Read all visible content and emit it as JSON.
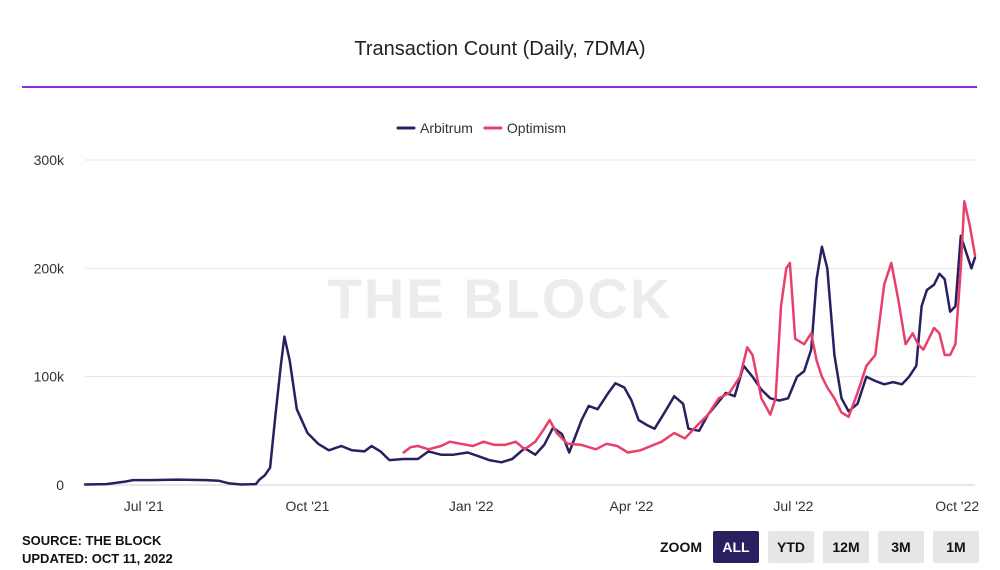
{
  "title": "Transaction Count (Daily, 7DMA)",
  "footer": {
    "source": "SOURCE: THE BLOCK",
    "updated": "UPDATED: OCT 11, 2022"
  },
  "watermark": "THE BLOCK",
  "zoom": {
    "label": "ZOOM",
    "buttons": [
      {
        "label": "ALL",
        "active": true
      },
      {
        "label": "YTD",
        "active": false
      },
      {
        "label": "12M",
        "active": false
      },
      {
        "label": "3M",
        "active": false
      },
      {
        "label": "1M",
        "active": false
      }
    ]
  },
  "colors": {
    "accent_rule": "#8a2be2",
    "arbitrum": "#2a2060",
    "optimism": "#e8406b",
    "zoom_active": "#2a2060"
  },
  "chart_data": {
    "type": "line",
    "x_unit": "date",
    "xlim": [
      "2021-05-29",
      "2022-10-11"
    ],
    "ylim": [
      0,
      300000
    ],
    "y_ticks": [
      0,
      100000,
      200000,
      300000
    ],
    "y_tick_labels": [
      "0",
      "100k",
      "200k",
      "300k"
    ],
    "x_ticks": [
      {
        "date": "2021-07-01",
        "label": "Jul '21"
      },
      {
        "date": "2021-10-01",
        "label": "Oct '21"
      },
      {
        "date": "2022-01-01",
        "label": "Jan '22"
      },
      {
        "date": "2022-04-01",
        "label": "Apr '22"
      },
      {
        "date": "2022-07-01",
        "label": "Jul '22"
      },
      {
        "date": "2022-10-01",
        "label": "Oct '22"
      }
    ],
    "grid": "horizontal",
    "legend_position": "top-center",
    "series": [
      {
        "name": "Arbitrum",
        "color": "#2a2060",
        "points": [
          [
            "2021-05-29",
            500
          ],
          [
            "2021-06-10",
            800
          ],
          [
            "2021-06-20",
            3000
          ],
          [
            "2021-06-25",
            4500
          ],
          [
            "2021-07-05",
            4500
          ],
          [
            "2021-07-20",
            5000
          ],
          [
            "2021-08-05",
            4500
          ],
          [
            "2021-08-12",
            4000
          ],
          [
            "2021-08-18",
            1500
          ],
          [
            "2021-08-25",
            500
          ],
          [
            "2021-09-02",
            800
          ],
          [
            "2021-09-04",
            5000
          ],
          [
            "2021-09-07",
            9000
          ],
          [
            "2021-09-10",
            16000
          ],
          [
            "2021-09-13",
            65000
          ],
          [
            "2021-09-16",
            110000
          ],
          [
            "2021-09-18",
            137000
          ],
          [
            "2021-09-21",
            115000
          ],
          [
            "2021-09-25",
            70000
          ],
          [
            "2021-10-01",
            48000
          ],
          [
            "2021-10-07",
            38000
          ],
          [
            "2021-10-13",
            32000
          ],
          [
            "2021-10-20",
            36000
          ],
          [
            "2021-10-26",
            32000
          ],
          [
            "2021-11-02",
            31000
          ],
          [
            "2021-11-06",
            36000
          ],
          [
            "2021-11-11",
            31000
          ],
          [
            "2021-11-16",
            23000
          ],
          [
            "2021-11-24",
            24000
          ],
          [
            "2021-12-02",
            24000
          ],
          [
            "2021-12-08",
            31000
          ],
          [
            "2021-12-15",
            28000
          ],
          [
            "2021-12-22",
            28000
          ],
          [
            "2021-12-30",
            30000
          ],
          [
            "2022-01-06",
            26000
          ],
          [
            "2022-01-11",
            23000
          ],
          [
            "2022-01-18",
            21000
          ],
          [
            "2022-01-24",
            24000
          ],
          [
            "2022-01-31",
            34000
          ],
          [
            "2022-02-06",
            28000
          ],
          [
            "2022-02-11",
            37000
          ],
          [
            "2022-02-16",
            53000
          ],
          [
            "2022-02-21",
            47000
          ],
          [
            "2022-02-25",
            30000
          ],
          [
            "2022-03-04",
            60000
          ],
          [
            "2022-03-08",
            73000
          ],
          [
            "2022-03-13",
            70000
          ],
          [
            "2022-03-19",
            85000
          ],
          [
            "2022-03-23",
            94000
          ],
          [
            "2022-03-28",
            90000
          ],
          [
            "2022-04-01",
            78000
          ],
          [
            "2022-04-05",
            60000
          ],
          [
            "2022-04-10",
            55000
          ],
          [
            "2022-04-14",
            52000
          ],
          [
            "2022-04-20",
            68000
          ],
          [
            "2022-04-25",
            82000
          ],
          [
            "2022-04-30",
            75000
          ],
          [
            "2022-05-03",
            52000
          ],
          [
            "2022-05-09",
            50000
          ],
          [
            "2022-05-14",
            65000
          ],
          [
            "2022-05-19",
            75000
          ],
          [
            "2022-05-24",
            85000
          ],
          [
            "2022-05-29",
            82000
          ],
          [
            "2022-06-03",
            110000
          ],
          [
            "2022-06-08",
            100000
          ],
          [
            "2022-06-13",
            88000
          ],
          [
            "2022-06-18",
            80000
          ],
          [
            "2022-06-23",
            78000
          ],
          [
            "2022-06-28",
            80000
          ],
          [
            "2022-07-03",
            100000
          ],
          [
            "2022-07-07",
            105000
          ],
          [
            "2022-07-11",
            125000
          ],
          [
            "2022-07-14",
            190000
          ],
          [
            "2022-07-17",
            220000
          ],
          [
            "2022-07-20",
            200000
          ],
          [
            "2022-07-24",
            120000
          ],
          [
            "2022-07-28",
            80000
          ],
          [
            "2022-08-01",
            68000
          ],
          [
            "2022-08-06",
            75000
          ],
          [
            "2022-08-11",
            100000
          ],
          [
            "2022-08-16",
            96000
          ],
          [
            "2022-08-21",
            93000
          ],
          [
            "2022-08-26",
            95000
          ],
          [
            "2022-08-31",
            93000
          ],
          [
            "2022-09-04",
            100000
          ],
          [
            "2022-09-08",
            110000
          ],
          [
            "2022-09-11",
            165000
          ],
          [
            "2022-09-14",
            180000
          ],
          [
            "2022-09-18",
            185000
          ],
          [
            "2022-09-21",
            195000
          ],
          [
            "2022-09-24",
            190000
          ],
          [
            "2022-09-27",
            160000
          ],
          [
            "2022-09-30",
            165000
          ],
          [
            "2022-10-03",
            230000
          ],
          [
            "2022-10-06",
            215000
          ],
          [
            "2022-10-09",
            200000
          ],
          [
            "2022-10-11",
            210000
          ]
        ]
      },
      {
        "name": "Optimism",
        "color": "#e8406b",
        "points": [
          [
            "2021-11-24",
            30000
          ],
          [
            "2021-11-28",
            35000
          ],
          [
            "2021-12-02",
            36000
          ],
          [
            "2021-12-08",
            33000
          ],
          [
            "2021-12-15",
            36000
          ],
          [
            "2021-12-20",
            40000
          ],
          [
            "2021-12-26",
            38000
          ],
          [
            "2022-01-02",
            36000
          ],
          [
            "2022-01-08",
            40000
          ],
          [
            "2022-01-14",
            37000
          ],
          [
            "2022-01-20",
            37000
          ],
          [
            "2022-01-26",
            40000
          ],
          [
            "2022-01-31",
            33000
          ],
          [
            "2022-02-06",
            40000
          ],
          [
            "2022-02-11",
            52000
          ],
          [
            "2022-02-14",
            60000
          ],
          [
            "2022-02-18",
            48000
          ],
          [
            "2022-02-24",
            38000
          ],
          [
            "2022-03-04",
            37000
          ],
          [
            "2022-03-12",
            33000
          ],
          [
            "2022-03-18",
            38000
          ],
          [
            "2022-03-24",
            36000
          ],
          [
            "2022-03-30",
            30000
          ],
          [
            "2022-04-06",
            32000
          ],
          [
            "2022-04-12",
            36000
          ],
          [
            "2022-04-18",
            40000
          ],
          [
            "2022-04-25",
            48000
          ],
          [
            "2022-05-01",
            43000
          ],
          [
            "2022-05-08",
            55000
          ],
          [
            "2022-05-14",
            65000
          ],
          [
            "2022-05-20",
            80000
          ],
          [
            "2022-05-26",
            85000
          ],
          [
            "2022-06-01",
            100000
          ],
          [
            "2022-06-05",
            127000
          ],
          [
            "2022-06-08",
            120000
          ],
          [
            "2022-06-13",
            80000
          ],
          [
            "2022-06-18",
            65000
          ],
          [
            "2022-06-21",
            80000
          ],
          [
            "2022-06-24",
            165000
          ],
          [
            "2022-06-27",
            200000
          ],
          [
            "2022-06-29",
            205000
          ],
          [
            "2022-07-02",
            135000
          ],
          [
            "2022-07-07",
            130000
          ],
          [
            "2022-07-11",
            140000
          ],
          [
            "2022-07-14",
            115000
          ],
          [
            "2022-07-17",
            100000
          ],
          [
            "2022-07-20",
            90000
          ],
          [
            "2022-07-24",
            80000
          ],
          [
            "2022-07-28",
            67000
          ],
          [
            "2022-08-01",
            63000
          ],
          [
            "2022-08-06",
            85000
          ],
          [
            "2022-08-11",
            110000
          ],
          [
            "2022-08-16",
            120000
          ],
          [
            "2022-08-21",
            185000
          ],
          [
            "2022-08-25",
            205000
          ],
          [
            "2022-08-29",
            170000
          ],
          [
            "2022-09-02",
            130000
          ],
          [
            "2022-09-06",
            140000
          ],
          [
            "2022-09-09",
            130000
          ],
          [
            "2022-09-12",
            125000
          ],
          [
            "2022-09-15",
            135000
          ],
          [
            "2022-09-18",
            145000
          ],
          [
            "2022-09-21",
            140000
          ],
          [
            "2022-09-24",
            120000
          ],
          [
            "2022-09-27",
            120000
          ],
          [
            "2022-09-30",
            130000
          ],
          [
            "2022-10-03",
            200000
          ],
          [
            "2022-10-05",
            262000
          ],
          [
            "2022-10-08",
            240000
          ],
          [
            "2022-10-11",
            212000
          ]
        ]
      }
    ]
  }
}
